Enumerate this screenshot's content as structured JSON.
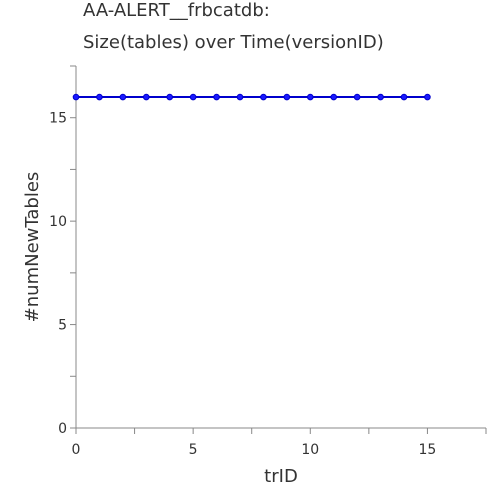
{
  "chart_data": {
    "type": "line",
    "title_lines": [
      "AA-ALERT__frbcatdb:",
      "Size(tables) over Time(versionID)"
    ],
    "xlabel": "trID",
    "ylabel": "#numNewTables",
    "xlim": [
      0,
      17.5
    ],
    "ylim": [
      0,
      17.5
    ],
    "x_ticks": [
      0,
      5,
      10,
      15
    ],
    "y_ticks": [
      0,
      5,
      10,
      15
    ],
    "x": [
      0,
      1,
      2,
      3,
      4,
      5,
      6,
      7,
      8,
      9,
      10,
      11,
      12,
      13,
      14,
      15
    ],
    "series": [
      {
        "values": [
          16,
          16,
          16,
          16,
          16,
          16,
          16,
          16,
          16,
          16,
          16,
          16,
          16,
          16,
          16,
          16
        ]
      }
    ],
    "line_color": "#0000cc",
    "marker_color": "#1a1aff",
    "grid": false
  }
}
